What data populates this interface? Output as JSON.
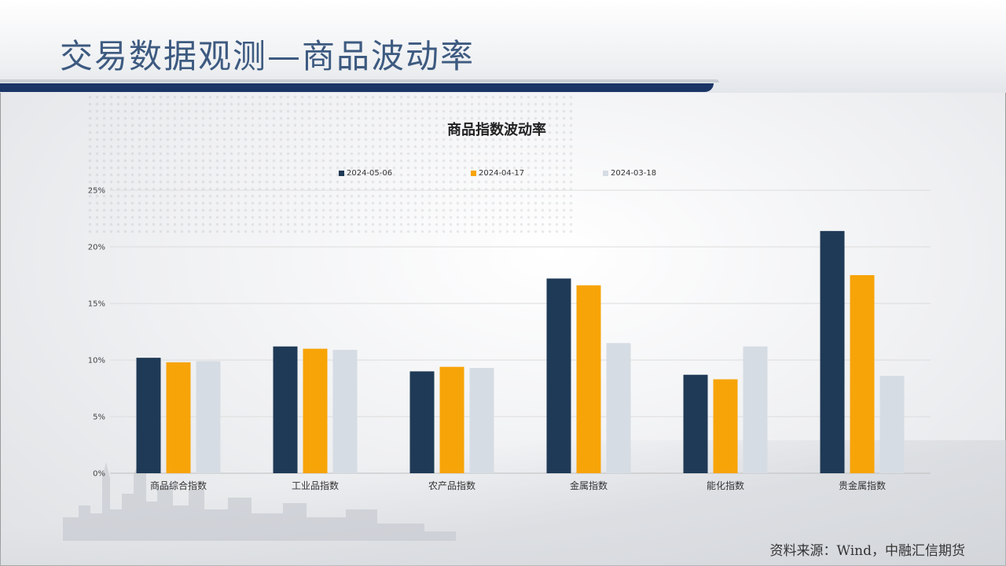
{
  "page": {
    "title": "交易数据观测—商品波动率",
    "source": "资料来源：Wind，中融汇信期货"
  },
  "colors": {
    "title": "#3d5a80",
    "bar_primary": "#1a3466",
    "series": [
      "#1f3a56",
      "#f7a408",
      "#d6dce3"
    ]
  },
  "chart_data": {
    "type": "bar",
    "title": "商品指数波动率",
    "categories": [
      "商品综合指数",
      "工业品指数",
      "农产品指数",
      "金属指数",
      "能化指数",
      "贵金属指数"
    ],
    "series": [
      {
        "name": "2024-05-06",
        "values": [
          10.2,
          11.2,
          9.0,
          17.2,
          8.7,
          21.4
        ]
      },
      {
        "name": "2024-04-17",
        "values": [
          9.8,
          11.0,
          9.4,
          16.6,
          8.3,
          17.5
        ]
      },
      {
        "name": "2024-03-18",
        "values": [
          9.9,
          10.9,
          9.3,
          11.5,
          11.2,
          8.6
        ]
      }
    ],
    "yticks": [
      "0%",
      "5%",
      "10%",
      "15%",
      "20%",
      "25%"
    ],
    "ylim": [
      0,
      25
    ],
    "grid": true,
    "legend_position": "top"
  }
}
